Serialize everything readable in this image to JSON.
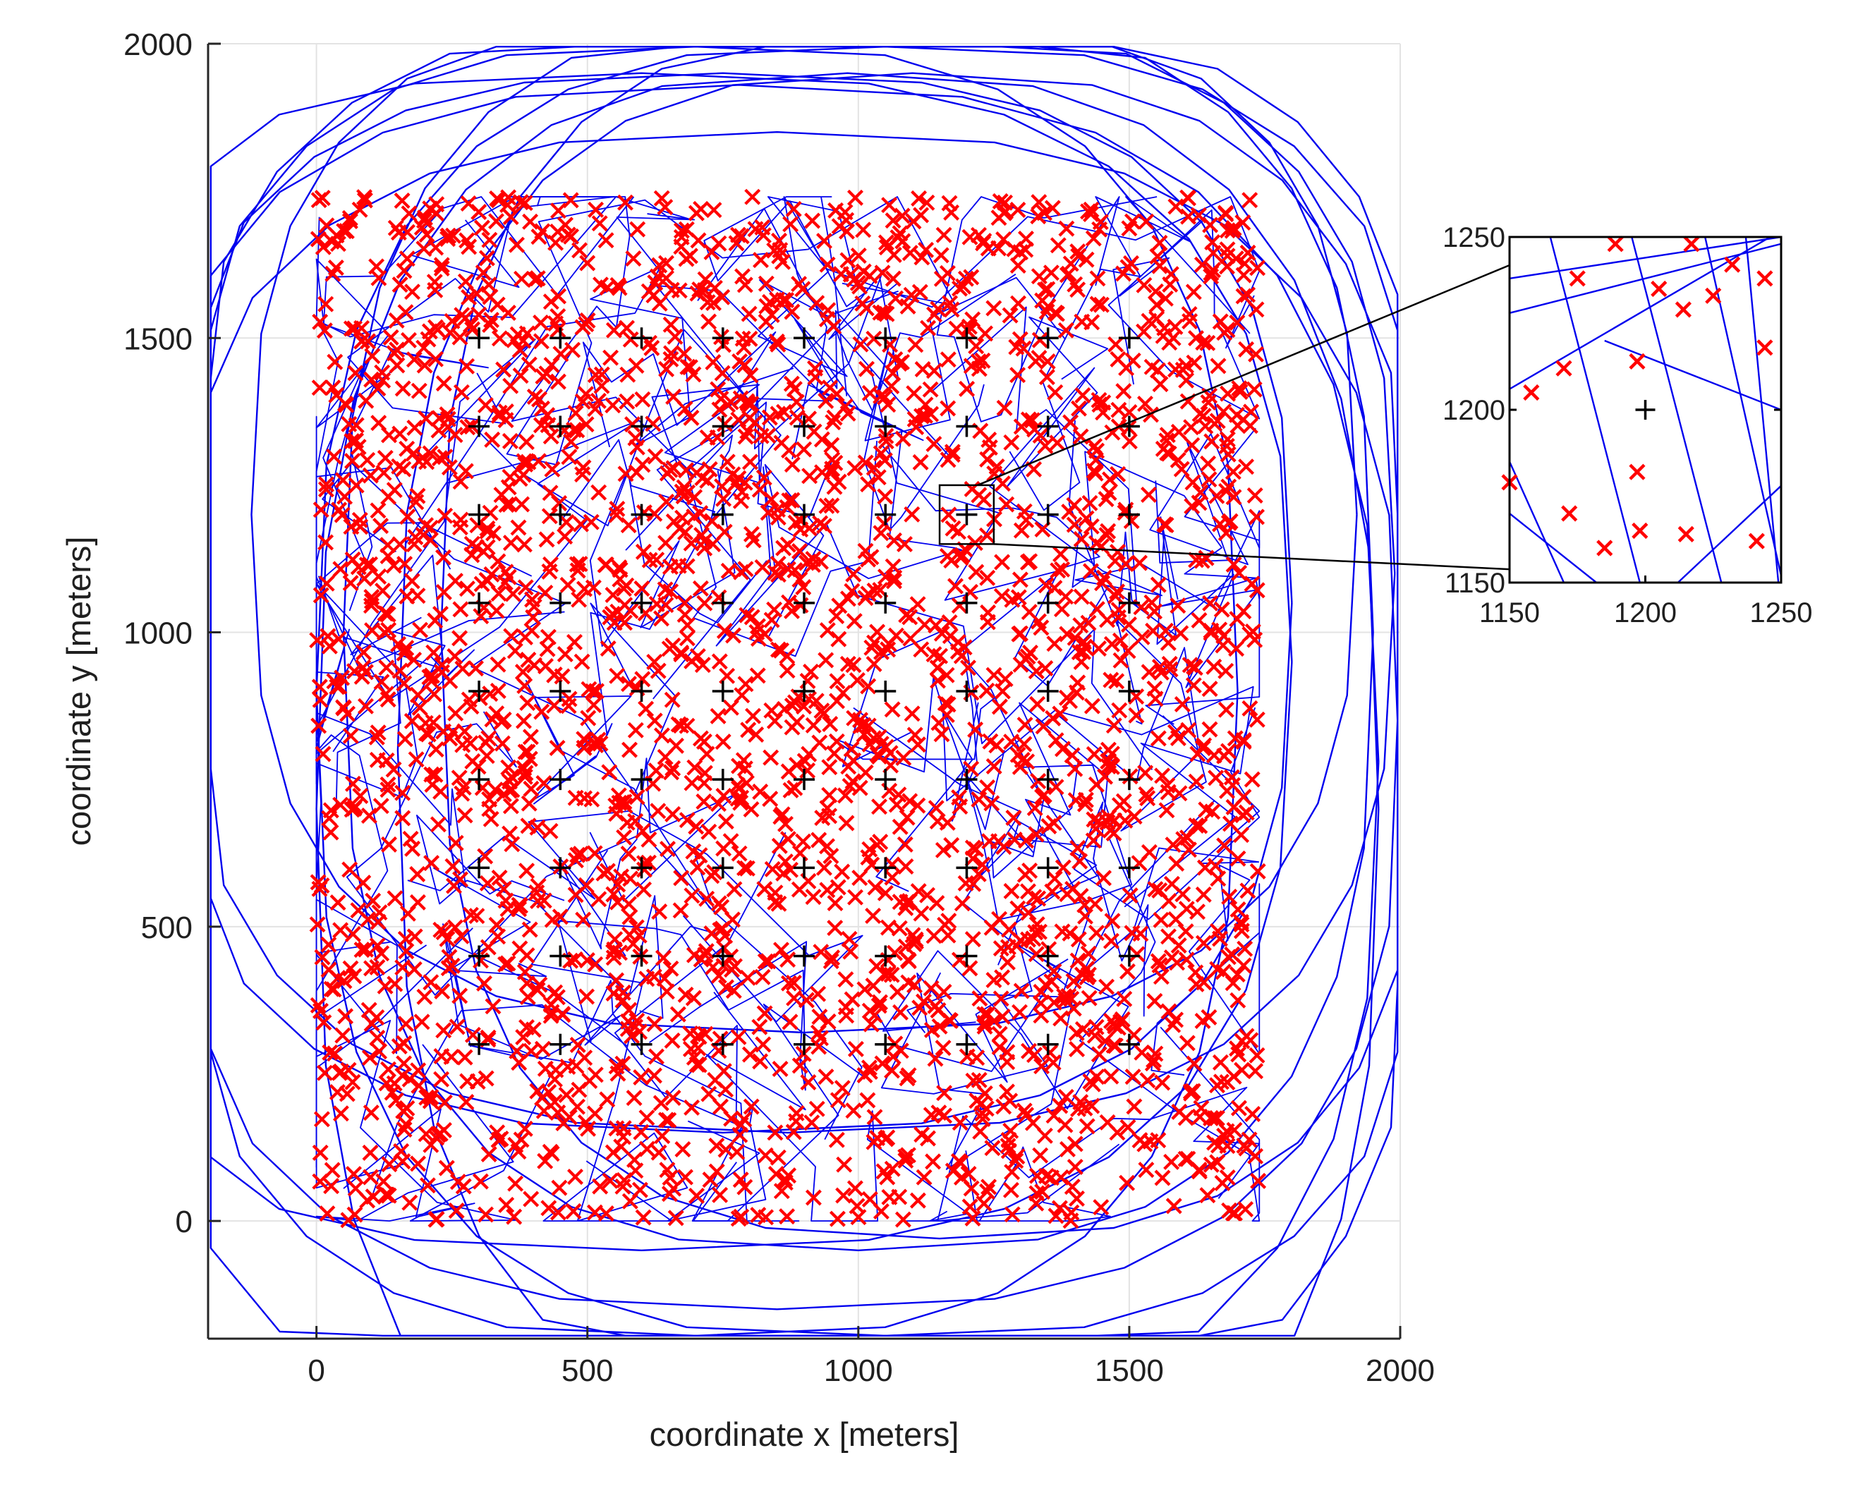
{
  "chart_data": [
    {
      "type": "scatter",
      "xlabel": "coordinate x [meters]",
      "ylabel": "coordinate y [meters]",
      "xlim": [
        -200,
        2000
      ],
      "ylim": [
        -200,
        2000
      ],
      "xticks": [
        "0",
        "500",
        "1000",
        "1500",
        "2000"
      ],
      "yticks": [
        "0",
        "500",
        "1000",
        "1500",
        "2000"
      ],
      "grid": true,
      "colors": {
        "points": "#ff0000",
        "paths": "#0000ee",
        "nodes": "#000000",
        "grid": "#e3e3e3",
        "axes": "#262626"
      },
      "series": [
        {
          "marker": "+",
          "x_values": [
            300,
            450,
            600,
            750,
            900,
            1050,
            1200,
            1350,
            1500
          ],
          "y_values": [
            300,
            450,
            600,
            750,
            900,
            1050,
            1200,
            1350,
            1500
          ]
        },
        {
          "marker": "x",
          "x_range": [
            0,
            1740
          ],
          "y_range": [
            0,
            1740
          ],
          "count": 2600
        },
        {
          "marker": "line",
          "extent_x": [
            -200,
            2000
          ],
          "extent_y": [
            -200,
            2000
          ]
        }
      ],
      "zoom_box": {
        "x": [
          1150,
          1250
        ],
        "y": [
          1150,
          1250
        ]
      }
    },
    {
      "type": "scatter",
      "xlim": [
        1150,
        1250
      ],
      "ylim": [
        1150,
        1250
      ],
      "xticks": [
        "1150",
        "1200",
        "1250"
      ],
      "yticks": [
        "1150",
        "1200",
        "1250"
      ],
      "node": {
        "x": 1200,
        "y": 1200
      },
      "points": [
        {
          "x": 1189,
          "y": 1248
        },
        {
          "x": 1217,
          "y": 1248
        },
        {
          "x": 1175,
          "y": 1238
        },
        {
          "x": 1232,
          "y": 1242
        },
        {
          "x": 1244,
          "y": 1238
        },
        {
          "x": 1205,
          "y": 1235
        },
        {
          "x": 1225,
          "y": 1233
        },
        {
          "x": 1214,
          "y": 1229
        },
        {
          "x": 1244,
          "y": 1218
        },
        {
          "x": 1170,
          "y": 1212
        },
        {
          "x": 1197,
          "y": 1214
        },
        {
          "x": 1158,
          "y": 1205
        },
        {
          "x": 1150,
          "y": 1179
        },
        {
          "x": 1197,
          "y": 1182
        },
        {
          "x": 1172,
          "y": 1170
        },
        {
          "x": 1198,
          "y": 1165
        },
        {
          "x": 1215,
          "y": 1164
        },
        {
          "x": 1185,
          "y": 1160
        },
        {
          "x": 1241,
          "y": 1162
        }
      ],
      "lines": [
        {
          "x": [
            1150,
            1250
          ],
          "y": [
            1238,
            1250
          ]
        },
        {
          "x": [
            1150,
            1250
          ],
          "y": [
            1228,
            1248
          ]
        },
        {
          "x": [
            1150,
            1246
          ],
          "y": [
            1206,
            1250
          ]
        },
        {
          "x": [
            1185,
            1250
          ],
          "y": [
            1220,
            1200
          ]
        },
        {
          "x": [
            1165,
            1198
          ],
          "y": [
            1250,
            1150
          ]
        },
        {
          "x": [
            1195,
            1228
          ],
          "y": [
            1250,
            1150
          ]
        },
        {
          "x": [
            1222,
            1250
          ],
          "y": [
            1250,
            1152
          ]
        },
        {
          "x": [
            1237,
            1249
          ],
          "y": [
            1250,
            1150
          ]
        },
        {
          "x": [
            1150,
            1182
          ],
          "y": [
            1170,
            1150
          ]
        },
        {
          "x": [
            1212,
            1250
          ],
          "y": [
            1150,
            1178
          ]
        },
        {
          "x": [
            1150,
            1170
          ],
          "y": [
            1185,
            1150
          ]
        }
      ]
    }
  ]
}
